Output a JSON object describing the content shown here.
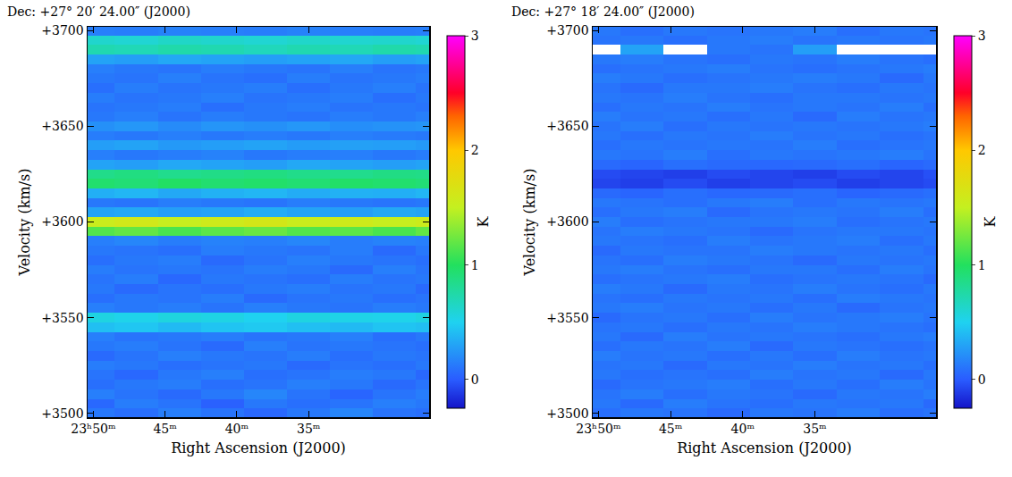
{
  "chart_data": [
    {
      "type": "heatmap",
      "title": "Dec: +27° 20′ 24.00″ (J2000)",
      "x_label": "Right Ascension (J2000)",
      "y_label": "Velocity (km/s)",
      "colorbar_title": "K",
      "xlim": [
        50.4,
        26.6
      ],
      "xticks": [
        {
          "value": 50,
          "label": "23ʰ50ᵐ"
        },
        {
          "value": 45,
          "label": "45ᵐ"
        },
        {
          "value": 40,
          "label": "40ᵐ"
        },
        {
          "value": 35,
          "label": "35ᵐ"
        }
      ],
      "ylim": [
        3498,
        3702
      ],
      "yticks": [
        {
          "value": 3500,
          "label": "+3500"
        },
        {
          "value": 3550,
          "label": "+3550"
        },
        {
          "value": 3600,
          "label": "+3600"
        },
        {
          "value": 3650,
          "label": "+3650"
        },
        {
          "value": 3700,
          "label": "+3700"
        }
      ],
      "zlim": [
        -0.25,
        3
      ],
      "zticks": [
        0,
        1,
        2,
        3
      ],
      "x": [
        50,
        47,
        44,
        41,
        38,
        35,
        32,
        29,
        26
      ],
      "y": [
        3500,
        3505,
        3510,
        3515,
        3520,
        3525,
        3530,
        3535,
        3540,
        3545,
        3550,
        3555,
        3560,
        3565,
        3570,
        3575,
        3580,
        3585,
        3590,
        3595,
        3600,
        3605,
        3610,
        3615,
        3620,
        3625,
        3630,
        3635,
        3640,
        3645,
        3650,
        3655,
        3660,
        3665,
        3670,
        3675,
        3680,
        3685,
        3690,
        3695,
        3700
      ],
      "z": [
        [
          0.12,
          0.08,
          0.15,
          0.1,
          0.05,
          0.12,
          0.18,
          0.1,
          0.08
        ],
        [
          0.05,
          0.14,
          0.1,
          0.02,
          0.12,
          0.08,
          0.1,
          0.15,
          0.12
        ],
        [
          0.15,
          0.1,
          0.06,
          0.12,
          0.18,
          0.1,
          0.04,
          0.1,
          0.14
        ],
        [
          0.08,
          0.12,
          0.14,
          0.08,
          0.1,
          0.15,
          0.12,
          0.06,
          0.1
        ],
        [
          0.1,
          0.05,
          0.12,
          0.15,
          0.08,
          0.1,
          0.14,
          0.12,
          0.05
        ],
        [
          0.14,
          0.12,
          0.08,
          0.1,
          0.12,
          0.06,
          0.1,
          0.08,
          0.12
        ],
        [
          0.06,
          0.1,
          0.15,
          0.12,
          0.1,
          0.14,
          0.08,
          0.12,
          0.1
        ],
        [
          0.12,
          0.14,
          0.1,
          0.06,
          0.15,
          0.1,
          0.12,
          0.1,
          0.08
        ],
        [
          0.15,
          0.1,
          0.12,
          0.14,
          0.1,
          0.12,
          0.15,
          0.08,
          0.12
        ],
        [
          0.42,
          0.45,
          0.4,
          0.44,
          0.46,
          0.42,
          0.4,
          0.44,
          0.42
        ],
        [
          0.55,
          0.52,
          0.56,
          0.54,
          0.5,
          0.55,
          0.53,
          0.52,
          0.55
        ],
        [
          0.15,
          0.12,
          0.14,
          0.1,
          0.15,
          0.12,
          0.1,
          0.14,
          0.12
        ],
        [
          0.08,
          0.12,
          0.1,
          0.14,
          0.06,
          0.1,
          0.12,
          0.08,
          0.1
        ],
        [
          0.12,
          0.06,
          0.1,
          0.08,
          0.12,
          0.14,
          0.1,
          0.12,
          0.06
        ],
        [
          0.1,
          0.14,
          0.05,
          0.12,
          0.1,
          0.08,
          0.14,
          0.1,
          0.12
        ],
        [
          0.14,
          0.1,
          0.12,
          0.1,
          0.14,
          0.12,
          0.06,
          0.15,
          0.1
        ],
        [
          0.08,
          0.12,
          0.14,
          0.06,
          0.1,
          0.15,
          0.12,
          0.1,
          0.08
        ],
        [
          0.12,
          0.1,
          0.08,
          0.14,
          0.12,
          0.1,
          0.14,
          0.06,
          0.12
        ],
        [
          0.15,
          0.18,
          0.14,
          0.16,
          0.15,
          0.18,
          0.14,
          0.16,
          0.15
        ],
        [
          1.15,
          1.2,
          1.12,
          1.18,
          1.22,
          1.15,
          1.18,
          1.12,
          1.2
        ],
        [
          1.55,
          1.6,
          1.52,
          1.58,
          1.62,
          1.55,
          1.58,
          1.52,
          1.56
        ],
        [
          0.3,
          0.32,
          0.28,
          0.3,
          0.34,
          0.3,
          0.28,
          0.32,
          0.3
        ],
        [
          0.12,
          0.1,
          0.14,
          0.12,
          0.1,
          0.14,
          0.12,
          0.1,
          0.12
        ],
        [
          0.35,
          0.38,
          0.32,
          0.36,
          0.38,
          0.34,
          0.36,
          0.35,
          0.38
        ],
        [
          0.95,
          0.92,
          0.98,
          0.94,
          0.96,
          0.93,
          0.97,
          0.95,
          0.92
        ],
        [
          0.85,
          0.88,
          0.84,
          0.86,
          0.88,
          0.85,
          0.84,
          0.87,
          0.86
        ],
        [
          0.3,
          0.28,
          0.32,
          0.3,
          0.28,
          0.32,
          0.3,
          0.28,
          0.3
        ],
        [
          0.15,
          0.12,
          0.14,
          0.16,
          0.12,
          0.14,
          0.15,
          0.12,
          0.14
        ],
        [
          0.28,
          0.3,
          0.26,
          0.28,
          0.3,
          0.27,
          0.29,
          0.28,
          0.26
        ],
        [
          0.14,
          0.12,
          0.15,
          0.12,
          0.14,
          0.12,
          0.15,
          0.13,
          0.12
        ],
        [
          0.22,
          0.25,
          0.2,
          0.24,
          0.22,
          0.25,
          0.21,
          0.23,
          0.24
        ],
        [
          0.12,
          0.15,
          0.1,
          0.14,
          0.12,
          0.1,
          0.14,
          0.12,
          0.15
        ],
        [
          0.1,
          0.12,
          0.14,
          0.08,
          0.12,
          0.14,
          0.1,
          0.12,
          0.1
        ],
        [
          0.14,
          0.1,
          0.12,
          0.15,
          0.1,
          0.12,
          0.14,
          0.08,
          0.12
        ],
        [
          0.08,
          0.14,
          0.1,
          0.12,
          0.14,
          0.08,
          0.12,
          0.15,
          0.1
        ],
        [
          0.12,
          0.1,
          0.15,
          0.1,
          0.08,
          0.14,
          0.1,
          0.12,
          0.14
        ],
        [
          0.15,
          0.12,
          0.1,
          0.14,
          0.12,
          0.1,
          0.15,
          0.1,
          0.12
        ],
        [
          0.3,
          0.28,
          0.32,
          0.3,
          0.28,
          0.3,
          0.32,
          0.28,
          0.3
        ],
        [
          0.72,
          0.7,
          0.74,
          0.72,
          0.68,
          0.72,
          0.7,
          0.74,
          0.72
        ],
        [
          0.62,
          0.6,
          0.64,
          0.62,
          0.6,
          0.63,
          0.61,
          0.62,
          0.6
        ],
        [
          0.15,
          0.14,
          0.16,
          0.15,
          0.14,
          0.16,
          0.15,
          0.14,
          0.15
        ]
      ]
    },
    {
      "type": "heatmap",
      "title": "Dec: +27° 18′ 24.00″ (J2000)",
      "x_label": "Right Ascension (J2000)",
      "y_label": "Velocity (km/s)",
      "colorbar_title": "K",
      "xlim": [
        50.4,
        26.6
      ],
      "xticks": [
        {
          "value": 50,
          "label": "23ʰ50ᵐ"
        },
        {
          "value": 45,
          "label": "45ᵐ"
        },
        {
          "value": 40,
          "label": "40ᵐ"
        },
        {
          "value": 35,
          "label": "35ᵐ"
        }
      ],
      "ylim": [
        3498,
        3702
      ],
      "yticks": [
        {
          "value": 3500,
          "label": "+3500"
        },
        {
          "value": 3550,
          "label": "+3550"
        },
        {
          "value": 3600,
          "label": "+3600"
        },
        {
          "value": 3650,
          "label": "+3650"
        },
        {
          "value": 3700,
          "label": "+3700"
        }
      ],
      "zlim": [
        -0.25,
        3
      ],
      "zticks": [
        0,
        1,
        2,
        3
      ],
      "x": [
        50,
        47,
        44,
        41,
        38,
        35,
        32,
        29,
        26
      ],
      "y": [
        3500,
        3505,
        3510,
        3515,
        3520,
        3525,
        3530,
        3535,
        3540,
        3545,
        3550,
        3555,
        3560,
        3565,
        3570,
        3575,
        3580,
        3585,
        3590,
        3595,
        3600,
        3605,
        3610,
        3615,
        3620,
        3625,
        3630,
        3635,
        3640,
        3645,
        3650,
        3655,
        3660,
        3665,
        3670,
        3675,
        3680,
        3685,
        3690,
        3695,
        3700
      ],
      "z": [
        [
          0.08,
          0.12,
          0.1,
          0.06,
          0.12,
          0.1,
          0.14,
          0.08,
          0.1
        ],
        [
          0.12,
          0.06,
          0.14,
          0.1,
          0.08,
          0.12,
          0.1,
          0.12,
          0.06
        ],
        [
          0.1,
          0.14,
          0.08,
          0.12,
          0.1,
          0.06,
          0.12,
          0.1,
          0.14
        ],
        [
          0.06,
          0.1,
          0.12,
          0.14,
          0.08,
          0.12,
          0.08,
          0.14,
          0.1
        ],
        [
          0.12,
          0.08,
          0.1,
          0.08,
          0.14,
          0.1,
          0.12,
          0.06,
          0.12
        ],
        [
          0.1,
          0.12,
          0.06,
          0.12,
          0.1,
          0.14,
          0.1,
          0.12,
          0.08
        ],
        [
          0.14,
          0.1,
          0.12,
          0.08,
          0.12,
          0.08,
          0.14,
          0.1,
          0.12
        ],
        [
          0.08,
          0.12,
          0.1,
          0.14,
          0.06,
          0.12,
          0.1,
          0.08,
          0.1
        ],
        [
          0.12,
          0.06,
          0.14,
          0.1,
          0.12,
          0.1,
          0.08,
          0.12,
          0.14
        ],
        [
          0.1,
          0.12,
          0.08,
          0.12,
          0.1,
          0.14,
          0.12,
          0.1,
          0.08
        ],
        [
          0.06,
          0.1,
          0.12,
          0.08,
          0.14,
          0.1,
          0.12,
          0.14,
          0.1
        ],
        [
          0.12,
          0.14,
          0.1,
          0.12,
          0.08,
          0.12,
          0.06,
          0.1,
          0.12
        ],
        [
          0.1,
          0.08,
          0.12,
          0.1,
          0.12,
          0.08,
          0.14,
          0.12,
          0.1
        ],
        [
          0.14,
          0.12,
          0.06,
          0.12,
          0.1,
          0.14,
          0.1,
          0.08,
          0.12
        ],
        [
          0.08,
          0.1,
          0.12,
          0.14,
          0.08,
          0.1,
          0.12,
          0.1,
          0.06
        ],
        [
          0.12,
          0.14,
          0.1,
          0.08,
          0.12,
          0.12,
          0.08,
          0.14,
          0.1
        ],
        [
          0.1,
          0.08,
          0.14,
          0.12,
          0.1,
          0.06,
          0.12,
          0.1,
          0.12
        ],
        [
          0.06,
          0.12,
          0.1,
          0.1,
          0.14,
          0.12,
          0.1,
          0.12,
          0.08
        ],
        [
          0.12,
          0.1,
          0.08,
          0.14,
          0.1,
          0.12,
          0.14,
          0.08,
          0.12
        ],
        [
          0.1,
          0.14,
          0.12,
          0.1,
          0.06,
          0.1,
          0.12,
          0.12,
          0.1
        ],
        [
          0.14,
          0.08,
          0.1,
          0.12,
          0.12,
          0.14,
          0.08,
          0.1,
          0.12
        ],
        [
          0.08,
          0.12,
          0.14,
          0.06,
          0.1,
          0.12,
          0.1,
          0.14,
          0.08
        ],
        [
          0.12,
          0.1,
          0.08,
          0.12,
          0.14,
          0.08,
          0.12,
          0.1,
          0.12
        ],
        [
          0.06,
          0.04,
          0.08,
          0.05,
          0.06,
          0.08,
          0.04,
          0.06,
          0.08
        ],
        [
          -0.08,
          -0.1,
          -0.06,
          -0.1,
          -0.08,
          -0.06,
          -0.1,
          -0.08,
          -0.06
        ],
        [
          -0.06,
          -0.08,
          -0.1,
          -0.06,
          -0.08,
          -0.1,
          -0.06,
          -0.08,
          -0.04
        ],
        [
          0.06,
          0.04,
          0.08,
          0.06,
          0.05,
          0.06,
          0.08,
          0.04,
          0.06
        ],
        [
          0.12,
          0.1,
          0.14,
          0.08,
          0.12,
          0.1,
          0.12,
          0.14,
          0.1
        ],
        [
          0.08,
          0.12,
          0.1,
          0.12,
          0.1,
          0.14,
          0.08,
          0.1,
          0.12
        ],
        [
          0.12,
          0.08,
          0.12,
          0.1,
          0.14,
          0.1,
          0.12,
          0.08,
          0.1
        ],
        [
          0.1,
          0.14,
          0.08,
          0.12,
          0.1,
          0.12,
          0.1,
          0.12,
          0.14
        ],
        [
          0.14,
          0.1,
          0.12,
          0.08,
          0.12,
          0.06,
          0.14,
          0.1,
          0.12
        ],
        [
          0.08,
          0.12,
          0.1,
          0.14,
          0.1,
          0.12,
          0.1,
          0.14,
          0.08
        ],
        [
          0.12,
          0.1,
          0.14,
          0.1,
          0.08,
          0.12,
          0.12,
          0.1,
          0.12
        ],
        [
          0.1,
          0.06,
          0.12,
          0.12,
          0.14,
          0.1,
          0.08,
          0.12,
          0.1
        ],
        [
          0.14,
          0.12,
          0.08,
          0.1,
          0.12,
          0.14,
          0.12,
          0.06,
          0.12
        ],
        [
          0.08,
          0.1,
          0.12,
          0.14,
          0.1,
          0.08,
          0.1,
          0.12,
          0.14
        ],
        [
          0.12,
          0.14,
          0.1,
          0.08,
          0.12,
          0.1,
          0.14,
          0.1,
          0.08
        ],
        [
          null,
          0.3,
          null,
          0.12,
          0.1,
          0.28,
          null,
          null,
          null
        ],
        [
          0.1,
          0.12,
          0.08,
          0.12,
          0.14,
          0.1,
          0.12,
          0.1,
          0.12
        ],
        [
          0.12,
          0.08,
          0.12,
          0.1,
          0.12,
          0.14,
          0.08,
          0.12,
          0.1
        ]
      ]
    }
  ]
}
